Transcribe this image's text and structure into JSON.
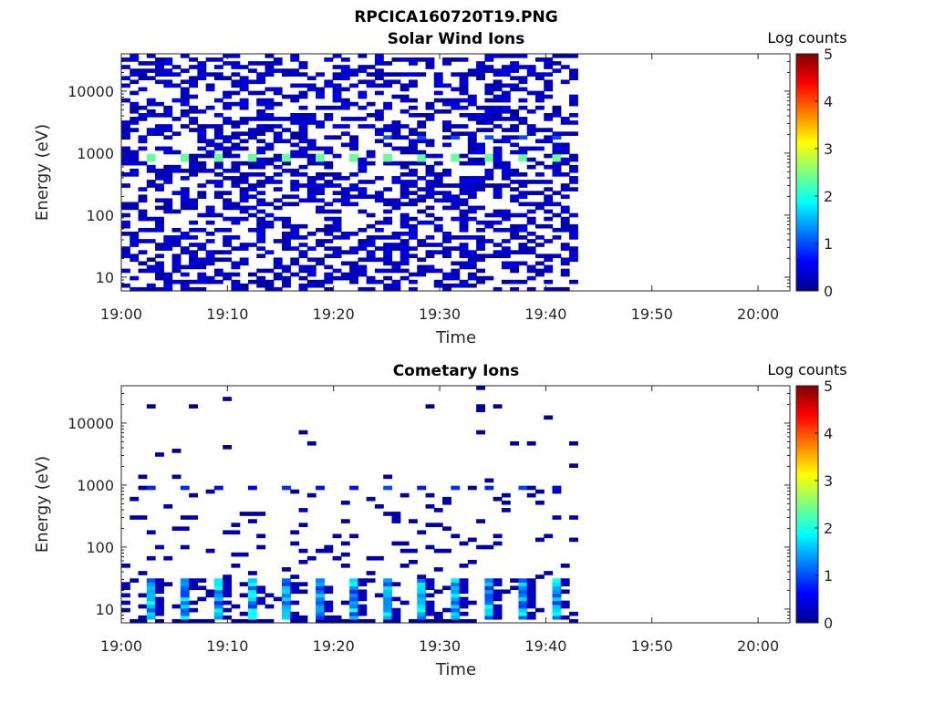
{
  "figure_title": "RPCICA160720T19.PNG",
  "chart_data": [
    {
      "type": "heatmap",
      "title": "Solar Wind Ions",
      "xlabel": "Time",
      "ylabel": "Energy (eV)",
      "x_ticks": [
        "19:00",
        "19:10",
        "19:20",
        "19:30",
        "19:40",
        "19:50",
        "20:00"
      ],
      "y_ticks": [
        "10",
        "100",
        "1000",
        "10000"
      ],
      "yscale": "log",
      "ylim": [
        6,
        40000
      ],
      "xlim": [
        "19:00",
        "20:03"
      ],
      "colorbar": {
        "label": "Log counts",
        "ticks": [
          "0",
          "1",
          "2",
          "3",
          "4",
          "5"
        ],
        "range": [
          0,
          5
        ]
      },
      "data_extent": [
        "19:00",
        "19:43"
      ],
      "peak": {
        "energy_eV": 850,
        "log_counts": 2.5,
        "note_times": [
          "19:03",
          "19:06",
          "19:09",
          "19:12",
          "19:16",
          "19:19",
          "19:22",
          "19:25",
          "19:28",
          "19:32",
          "19:35",
          "19:38",
          "19:41"
        ]
      }
    },
    {
      "type": "heatmap",
      "title": "Cometary Ions",
      "xlabel": "Time",
      "ylabel": "Energy (eV)",
      "x_ticks": [
        "19:00",
        "19:10",
        "19:20",
        "19:30",
        "19:40",
        "19:50",
        "20:00"
      ],
      "y_ticks": [
        "10",
        "100",
        "1000",
        "10000"
      ],
      "yscale": "log",
      "ylim": [
        6,
        40000
      ],
      "xlim": [
        "19:00",
        "20:03"
      ],
      "colorbar": {
        "label": "Log counts",
        "ticks": [
          "0",
          "1",
          "2",
          "3",
          "4",
          "5"
        ],
        "range": [
          0,
          5
        ]
      },
      "data_extent": [
        "19:00",
        "19:43"
      ],
      "peak": {
        "energy_eV": 12,
        "log_counts": 2.0
      }
    }
  ]
}
